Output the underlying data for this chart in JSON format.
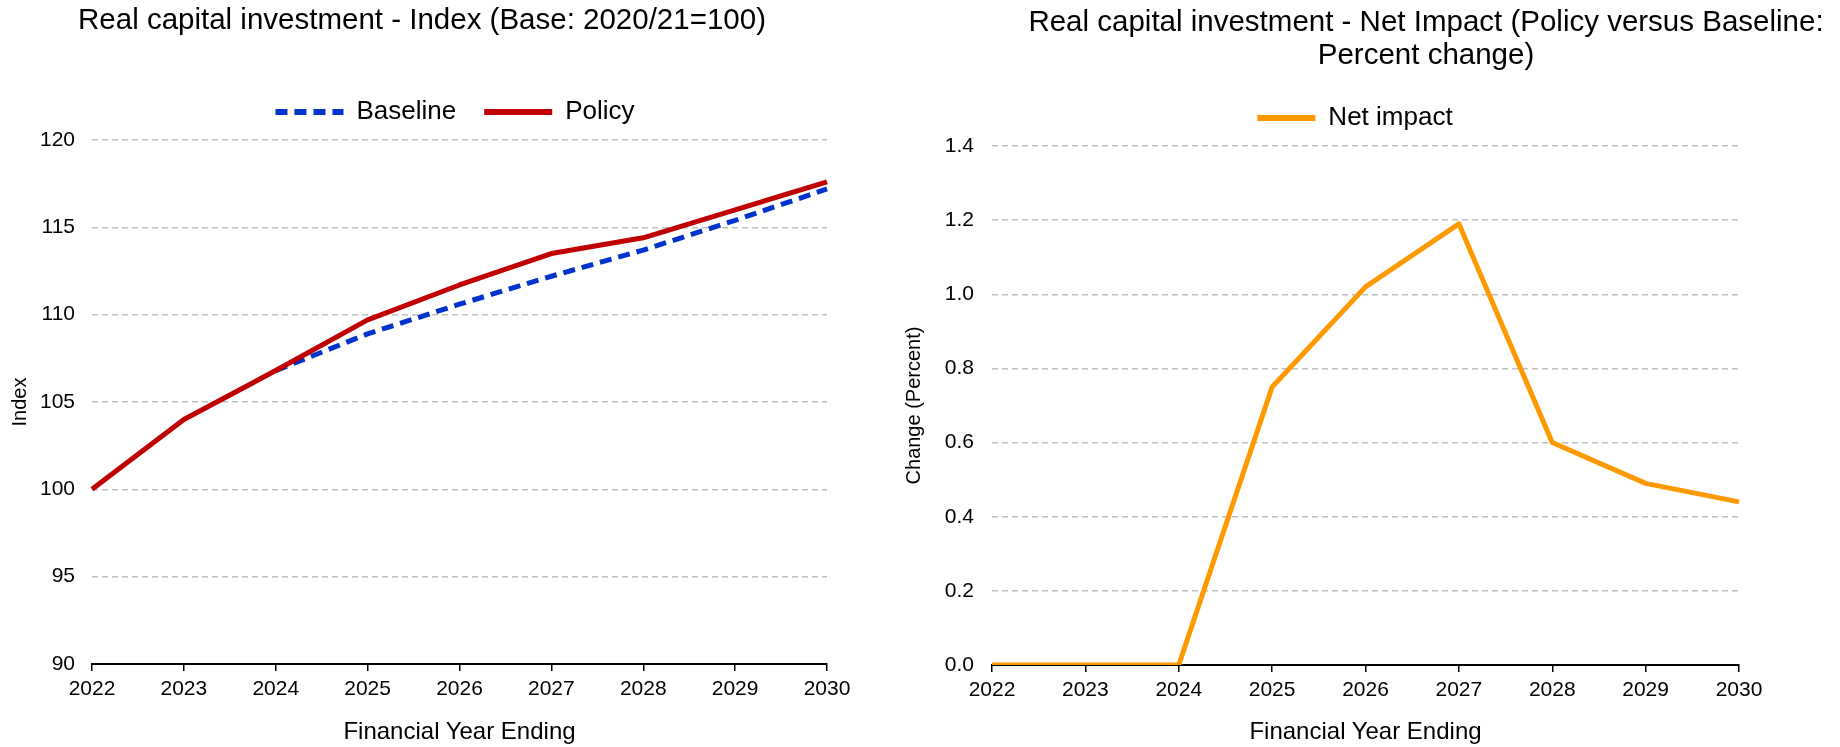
{
  "chart_data": [
    {
      "type": "line",
      "title": "Real capital investment - Index (Base: 2020/21=100)",
      "xlabel": "Financial Year Ending",
      "ylabel": "Index",
      "categories": [
        "2022",
        "2023",
        "2024",
        "2025",
        "2026",
        "2027",
        "2028",
        "2029",
        "2030"
      ],
      "series": [
        {
          "name": "Baseline",
          "color": "#0033cc",
          "line_style": "dashed",
          "values": [
            null,
            null,
            106.8,
            108.9,
            110.6,
            112.2,
            113.7,
            115.4,
            117.2
          ]
        },
        {
          "name": "Policy",
          "color": "#c00000",
          "line_style": "solid",
          "values": [
            100,
            104,
            106.8,
            109.7,
            111.7,
            113.5,
            114.4,
            116,
            117.6
          ]
        }
      ],
      "ylim": [
        90,
        120
      ],
      "yticks": [
        90,
        95,
        100,
        105,
        110,
        115,
        120
      ],
      "grid": "y",
      "legend": "top",
      "marker": "none"
    },
    {
      "type": "line",
      "title": "Real capital investment - Net Impact (Policy versus Baseline: Percent change)",
      "xlabel": "Financial Year Ending",
      "ylabel": "Change (Percent)",
      "categories": [
        "2022",
        "2023",
        "2024",
        "2025",
        "2026",
        "2027",
        "2028",
        "2029",
        "2030"
      ],
      "series": [
        {
          "name": "Net impact",
          "color": "#ff9900",
          "values": [
            0,
            0,
            0,
            0.75,
            1.02,
            1.19,
            0.6,
            0.49,
            0.44
          ]
        }
      ],
      "ylim": [
        0,
        1.4
      ],
      "yticks": [
        {
          "value": 0,
          "label": "0.0"
        },
        0.2,
        0.4,
        0.6,
        0.8,
        {
          "value": 1,
          "label": "1.0"
        },
        1.2,
        1.4
      ],
      "grid": "y",
      "legend": "top",
      "marker": "none",
      "line_style": "solid"
    }
  ]
}
